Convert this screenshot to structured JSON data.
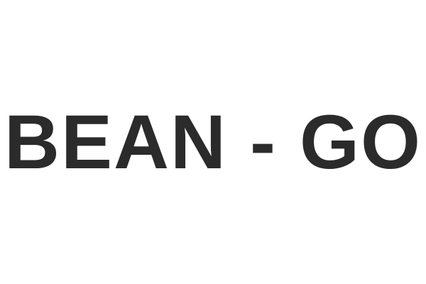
{
  "wordmark": {
    "text": "BEAN - GO",
    "color": "#2b2b2b"
  },
  "background": "#ffffff"
}
